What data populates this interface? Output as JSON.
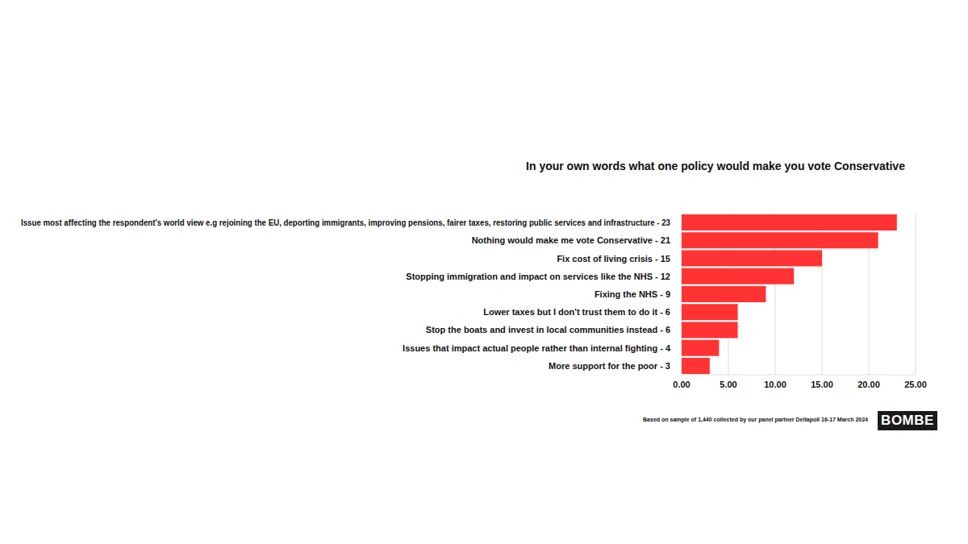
{
  "chart_data": {
    "type": "bar",
    "orientation": "horizontal",
    "title": "In your own words what one policy would make you vote Conservative",
    "categories": [
      "Issue most affecting the respondent's world view e.g rejoining the EU, deporting immigrants, improving pensions, fairer taxes, restoring public services and infrastructure - 23",
      "Nothing would make me vote Conservative - 21",
      "Fix cost of living crisis - 15",
      "Stopping immigration and impact on services like the NHS - 12",
      "Fixing the NHS - 9",
      "Lower taxes but I don't trust them to do it - 6",
      "Stop the boats and invest in local communities instead - 6",
      "Issues that impact actual people rather than internal fighting - 4",
      "More support for the poor - 3"
    ],
    "values": [
      23,
      21,
      15,
      12,
      9,
      6,
      6,
      4,
      3
    ],
    "color": "#ff3333",
    "xlim": [
      0,
      25
    ],
    "xticks": [
      {
        "value": 0,
        "label": "0.00"
      },
      {
        "value": 5,
        "label": "5.00"
      },
      {
        "value": 10,
        "label": "10.00"
      },
      {
        "value": 15,
        "label": "15.00"
      },
      {
        "value": 20,
        "label": "20.00"
      },
      {
        "value": 25,
        "label": "25.00"
      }
    ],
    "grid": true,
    "source": "Based on sample of 1,440 collected by our panel partner Deltapoll 16-17 March 2024",
    "logo": "BOMBE"
  }
}
